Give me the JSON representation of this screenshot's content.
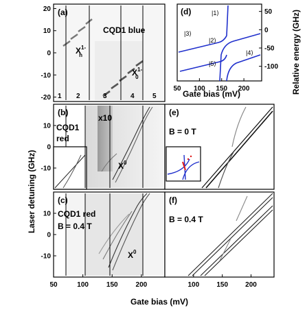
{
  "figure": {
    "ylabel_left": "Laser detuning (GHz)",
    "xlabel_bottom": "Gate  bias (mV)",
    "ylabel_right_d": "Relative energy (GHz)",
    "xlabel_d": "Gate bias (mV)"
  },
  "panels": {
    "a": {
      "label": "(a)",
      "title": "CQD1 blue",
      "x_h_label": "X",
      "x_h_sup": "1-",
      "x_h_sub": "h",
      "x_0_label": "X",
      "x_0_sup": "1-",
      "x_0_sub": "0",
      "regions": [
        "1",
        "2",
        "3",
        "4",
        "5"
      ]
    },
    "b": {
      "label": "(b)",
      "line1": "CQD1",
      "line2": "red",
      "gain": "x10",
      "x0_label": "X",
      "x0_sup": "0"
    },
    "c": {
      "label": "(c)",
      "line1": "CQD1 red",
      "line2": "B = 0.4 T",
      "x0_label": "X",
      "x0_sup": "0"
    },
    "d": {
      "label": "(d)",
      "states": [
        "|1⟩",
        "|2⟩",
        "|3⟩",
        "|4⟩",
        "|5⟩"
      ]
    },
    "e": {
      "label": "(e)",
      "title": "B = 0 T"
    },
    "f": {
      "label": "(f)",
      "title": "B = 0.4 T"
    }
  },
  "chart_data": [
    {
      "type": "heatmap",
      "panel": "a",
      "xlim": [
        50,
        240
      ],
      "ylim": [
        -22,
        22
      ],
      "y_ticks": [
        20,
        10,
        0,
        -10,
        -20
      ],
      "x_ticks": []
    },
    {
      "type": "heatmap",
      "panel": "b",
      "xlim": [
        50,
        240
      ],
      "ylim": [
        -20,
        20
      ],
      "y_ticks": [
        10,
        0,
        -10
      ],
      "x_ticks": []
    },
    {
      "type": "heatmap",
      "panel": "c",
      "xlim": [
        50,
        240
      ],
      "ylim": [
        -20,
        20
      ],
      "y_ticks": [
        10,
        0,
        -10
      ],
      "x_ticks": [
        50,
        100,
        150,
        200
      ]
    },
    {
      "type": "line",
      "panel": "d",
      "xlim": [
        50,
        240
      ],
      "ylim": [
        -140,
        70
      ],
      "x_ticks": [
        50,
        100,
        150,
        200
      ],
      "y_ticks_right": [
        50,
        0,
        -50,
        -100
      ]
    },
    {
      "type": "line",
      "panel": "e",
      "xlim": [
        50,
        240
      ],
      "ylim": [
        -20,
        20
      ],
      "y_ticks": [],
      "x_ticks": []
    },
    {
      "type": "line",
      "panel": "f",
      "xlim": [
        50,
        240
      ],
      "ylim": [
        -20,
        20
      ],
      "y_ticks": [],
      "x_ticks": [
        100,
        150,
        200
      ]
    }
  ]
}
